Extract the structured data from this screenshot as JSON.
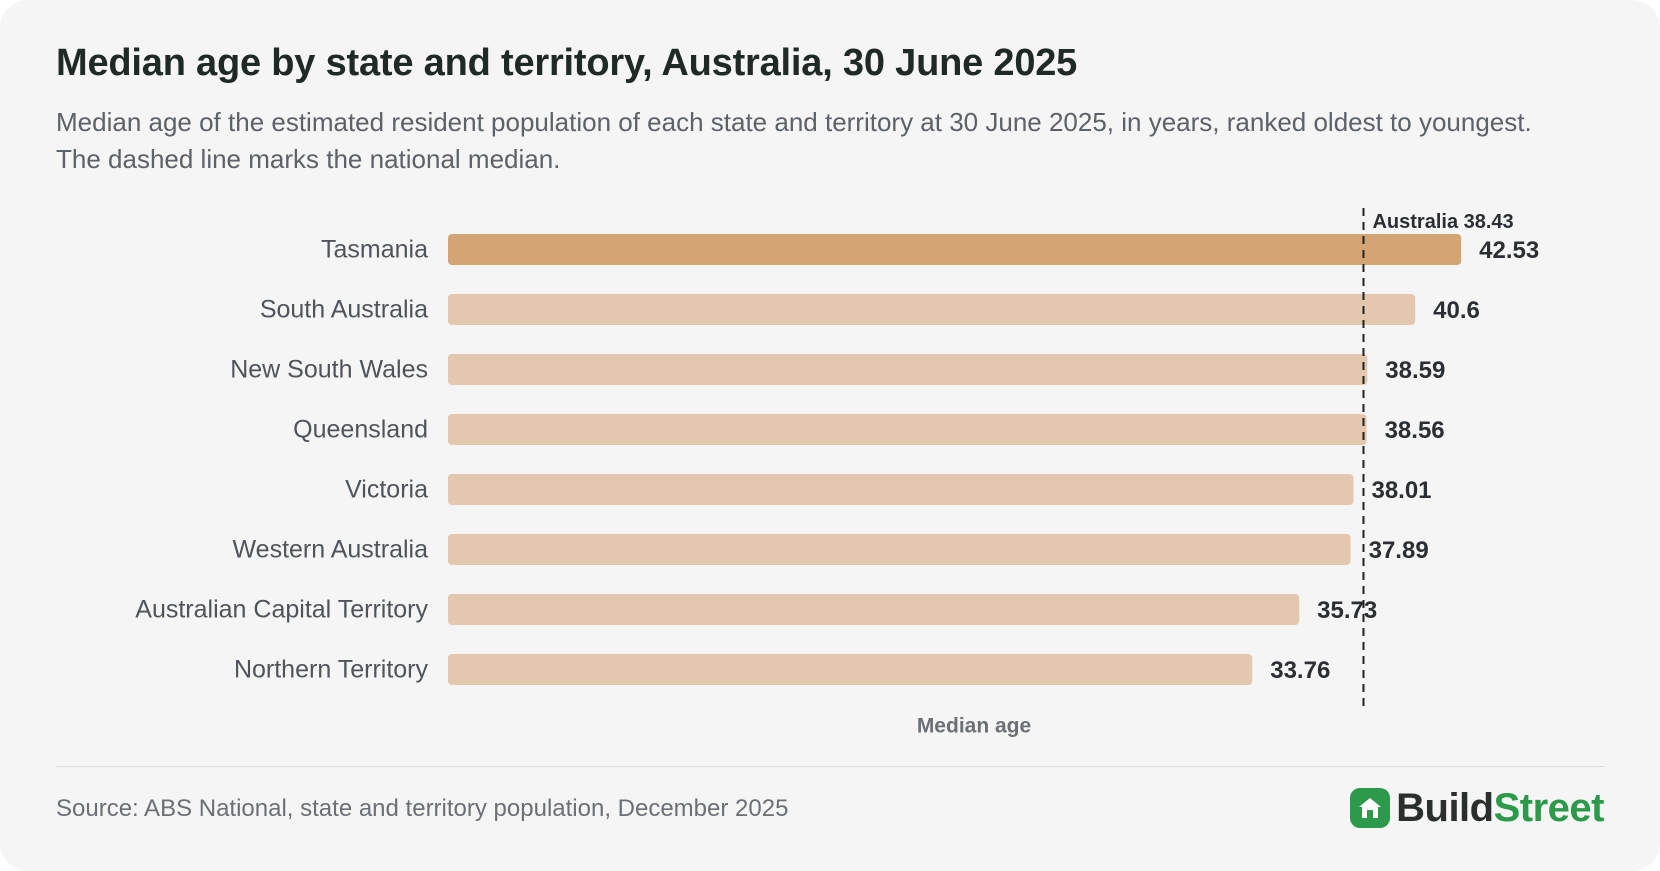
{
  "header": {
    "title": "Median age by state and territory, Australia, 30 June 2025",
    "subtitle": "Median age of the estimated resident population of each state and territory at 30 June 2025, in years, ranked oldest to youngest. The dashed line marks the national median."
  },
  "footer": {
    "source": "Source: ABS National, state and territory population, December 2025",
    "logo_build": "Build",
    "logo_street": "Street",
    "logo_icon": "house-icon"
  },
  "colors": {
    "highlight_bar": "#d4a574",
    "bar": "#e3c7ae",
    "reference_line": "#222222",
    "brand": "#2c9a4a"
  },
  "chart_data": {
    "type": "bar",
    "orientation": "horizontal",
    "categories": [
      "Tasmania",
      "South Australia",
      "New South Wales",
      "Queensland",
      "Victoria",
      "Western Australia",
      "Australian Capital Territory",
      "Northern Territory"
    ],
    "values": [
      42.53,
      40.6,
      38.59,
      38.56,
      38.01,
      37.89,
      35.73,
      33.76
    ],
    "value_labels": [
      "42.53",
      "40.6",
      "38.59",
      "38.56",
      "38.01",
      "37.89",
      "35.73",
      "33.76"
    ],
    "highlight_index": 0,
    "xlabel": "Median age",
    "xlim": [
      0,
      45
    ],
    "reference_line": {
      "value": 38.43,
      "label": "Australia 38.43",
      "style": "dashed"
    },
    "grid": false,
    "legend": "none"
  }
}
